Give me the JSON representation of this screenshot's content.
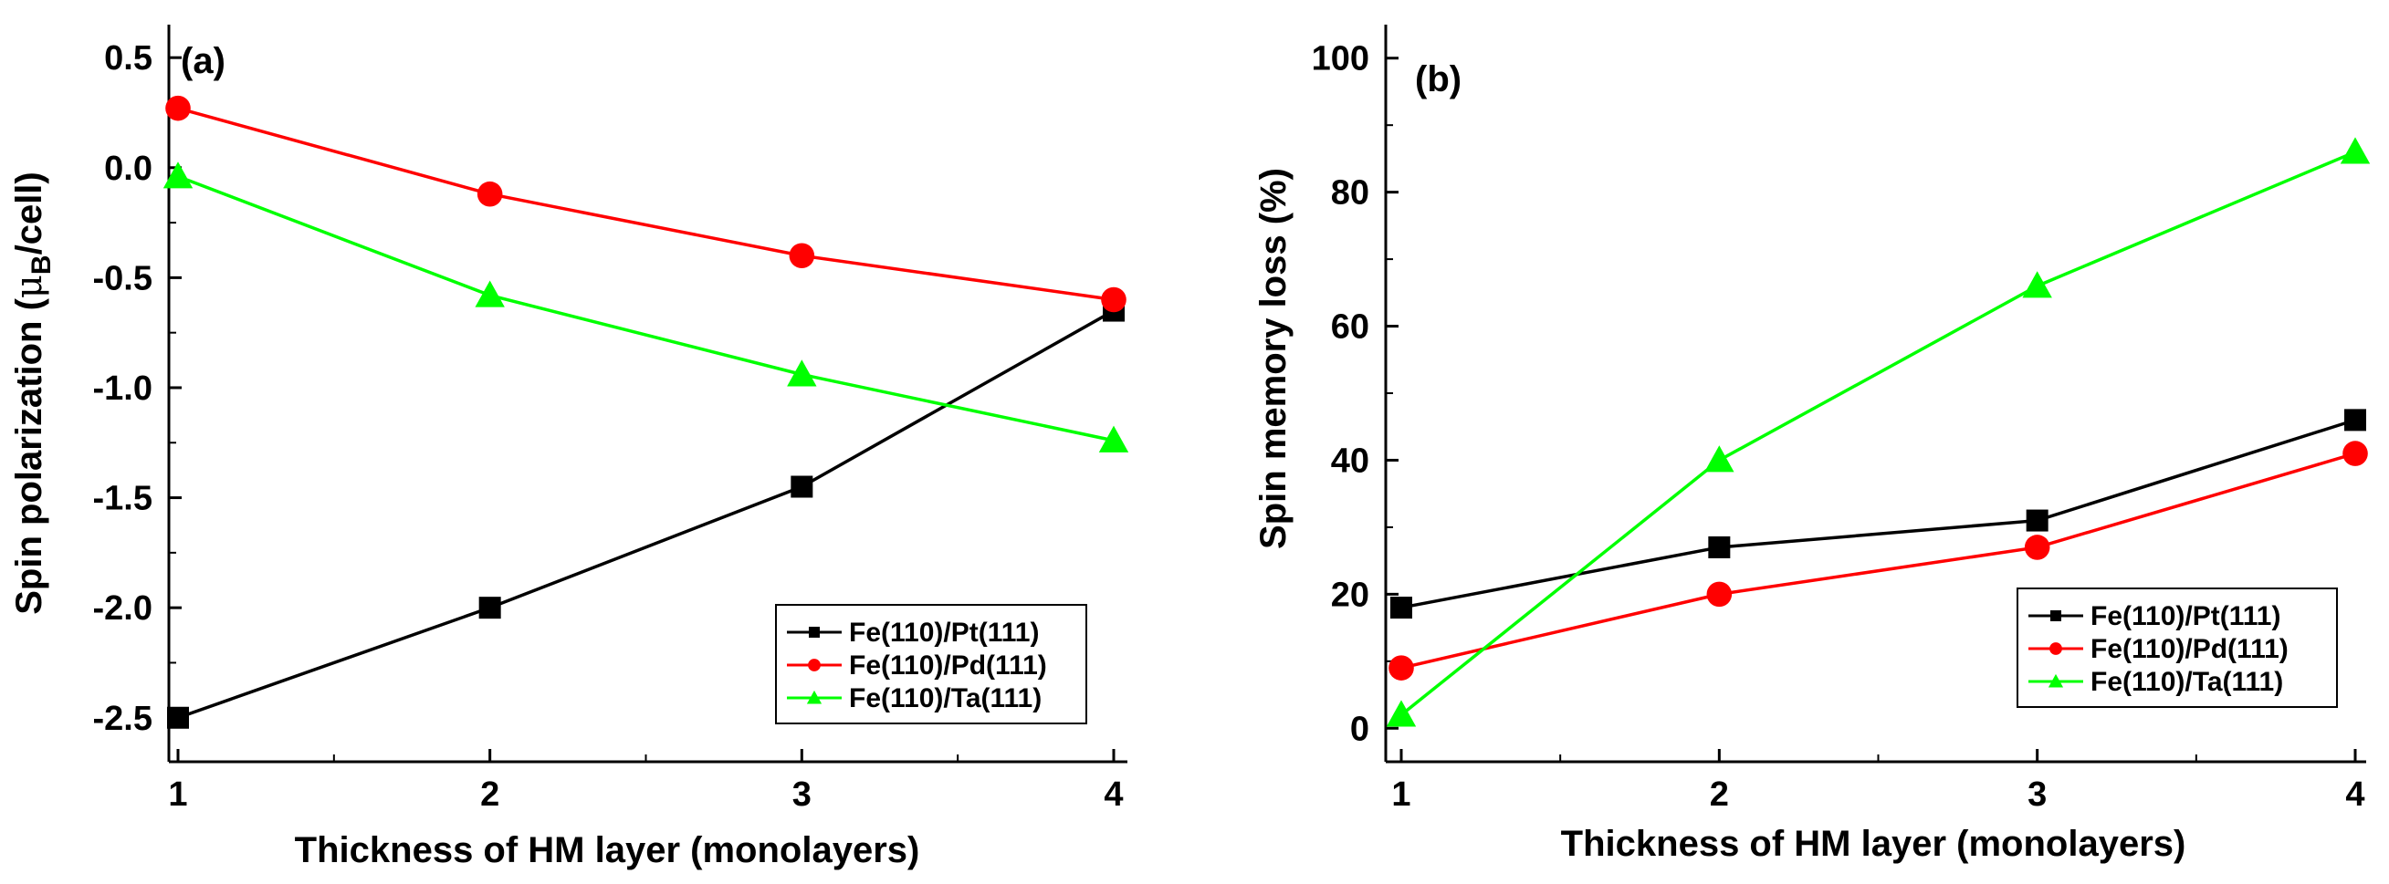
{
  "colors": {
    "Pt": "#000000",
    "Pd": "#ff0000",
    "Ta": "#00ff00"
  },
  "chart_data": [
    {
      "type": "line",
      "panel_label": "(a)",
      "xlabel": "Thickness of HM layer (monolayers)",
      "ylabel_main": "Spin polarization (",
      "ylabel_mu": "μ",
      "ylabel_sub": "B",
      "ylabel_end": "/cell)",
      "x": [
        1,
        2,
        3,
        4
      ],
      "xlim": [
        1,
        4
      ],
      "ylim": [
        -2.7,
        0.65
      ],
      "xticks": [
        "1",
        "2",
        "3",
        "4"
      ],
      "yticks": [
        -2.5,
        -2.0,
        -1.5,
        -1.0,
        -0.5,
        0.0,
        0.5
      ],
      "ytick_labels": [
        "-2.5",
        "-2.0",
        "-1.5",
        "-1.0",
        "-0.5",
        "0.0",
        "0.5"
      ],
      "legend_position": "bottom-right",
      "series": [
        {
          "name": "Fe(110)/Pt(111)",
          "marker": "square",
          "color_key": "Pt",
          "values": [
            -2.5,
            -2.0,
            -1.45,
            -0.65
          ]
        },
        {
          "name": "Fe(110)/Pd(111)",
          "marker": "circle",
          "color_key": "Pd",
          "values": [
            0.27,
            -0.12,
            -0.4,
            -0.6
          ]
        },
        {
          "name": "Fe(110)/Ta(111)",
          "marker": "triangle",
          "color_key": "Ta",
          "values": [
            -0.04,
            -0.58,
            -0.94,
            -1.24
          ]
        }
      ]
    },
    {
      "type": "line",
      "panel_label": "(b)",
      "xlabel": "Thickness of HM layer (monolayers)",
      "ylabel": "Spin memory loss (%)",
      "x": [
        1,
        2,
        3,
        4
      ],
      "xlim": [
        1,
        4
      ],
      "ylim": [
        -5,
        105
      ],
      "xticks": [
        "1",
        "2",
        "3",
        "4"
      ],
      "yticks": [
        0,
        20,
        40,
        60,
        80,
        100
      ],
      "ytick_labels": [
        "0",
        "20",
        "40",
        "60",
        "80",
        "100"
      ],
      "legend_position": "bottom-right",
      "series": [
        {
          "name": "Fe(110)/Pt(111)",
          "marker": "square",
          "color_key": "Pt",
          "values": [
            18,
            27,
            31,
            46
          ]
        },
        {
          "name": "Fe(110)/Pd(111)",
          "marker": "circle",
          "color_key": "Pd",
          "values": [
            9,
            20,
            27,
            41
          ]
        },
        {
          "name": "Fe(110)/Ta(111)",
          "marker": "triangle",
          "color_key": "Ta",
          "values": [
            2,
            40,
            66,
            86
          ]
        }
      ]
    }
  ]
}
